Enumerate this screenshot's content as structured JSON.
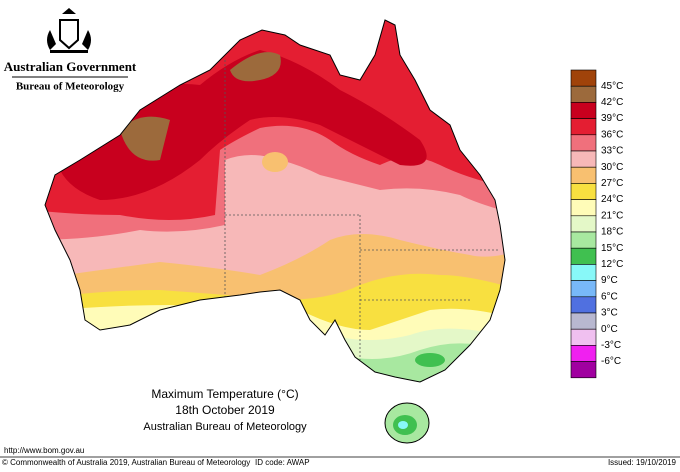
{
  "header": {
    "government": "Australian Government",
    "agency": "Bureau of Meteorology"
  },
  "legend": {
    "labels": [
      "45°C",
      "42°C",
      "39°C",
      "36°C",
      "33°C",
      "30°C",
      "27°C",
      "24°C",
      "21°C",
      "18°C",
      "15°C",
      "12°C",
      "9°C",
      "6°C",
      "3°C",
      "0°C",
      "-3°C",
      "-6°C"
    ],
    "colors": [
      "#a0430a",
      "#9c6a3c",
      "#c8001e",
      "#e41e32",
      "#f0707c",
      "#f7b8b8",
      "#f8c070",
      "#f8e040",
      "#fffcb8",
      "#e4f8c8",
      "#a8e8a0",
      "#40c050",
      "#88f8f8",
      "#78b8f8",
      "#5070e0",
      "#b8b8d0",
      "#f0c0f0",
      "#f020f0",
      "#a000a0"
    ]
  },
  "caption": {
    "title": "Maximum Temperature (°C)",
    "date": "18th October 2019",
    "source": "Australian Bureau of Meteorology"
  },
  "footer": {
    "url": "http://www.bom.gov.au",
    "copyright": "© Commonwealth of Australia 2019, Australian Bureau of Meteorology",
    "id_code": "ID code: AWAP",
    "issued": "Issued: 19/10/2019"
  }
}
